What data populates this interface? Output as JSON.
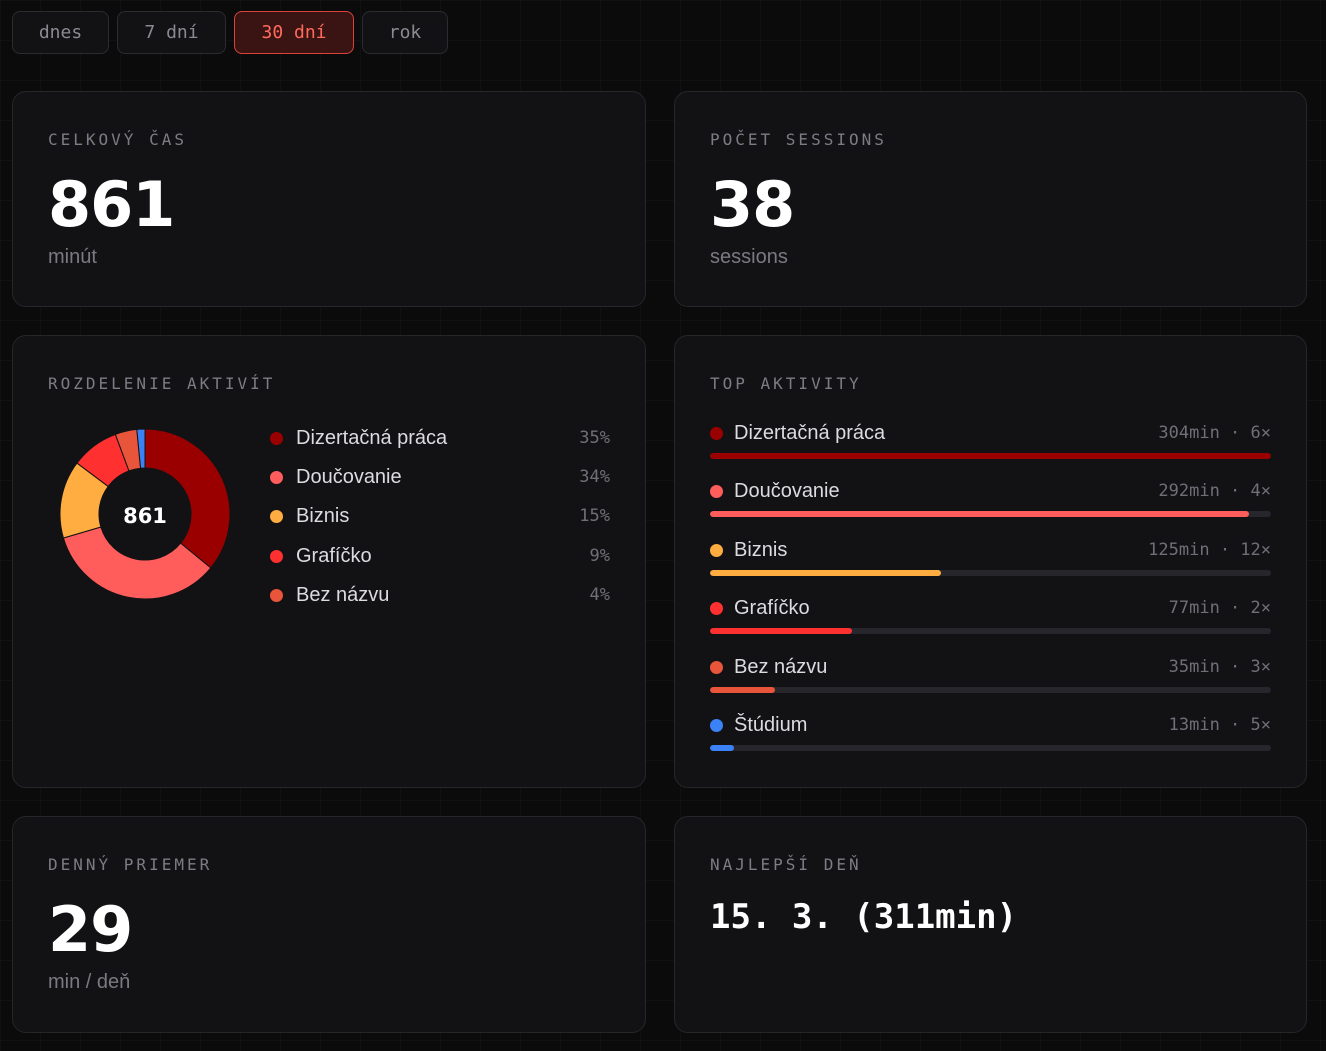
{
  "tabs": [
    {
      "label": "dnes",
      "active": false
    },
    {
      "label": "7 dní",
      "active": false
    },
    {
      "label": "30 dní",
      "active": true
    },
    {
      "label": "rok",
      "active": false
    }
  ],
  "total_time": {
    "label": "CELKOVÝ ČAS",
    "value": "861",
    "unit": "minút"
  },
  "sessions": {
    "label": "POČET SESSIONS",
    "value": "38",
    "unit": "sessions"
  },
  "breakdown": {
    "label": "ROZDELENIE AKTIVÍT",
    "center_label": "861",
    "items": [
      {
        "name": "Dizertačná práca",
        "pct": "35%",
        "color": "#9b0000"
      },
      {
        "name": "Doučovanie",
        "pct": "34%",
        "color": "#ff5c5c"
      },
      {
        "name": "Biznis",
        "pct": "15%",
        "color": "#ffac40"
      },
      {
        "name": "Grafíčko",
        "pct": "9%",
        "color": "#ff3030"
      },
      {
        "name": "Bez názvu",
        "pct": "4%",
        "color": "#e9553a"
      }
    ]
  },
  "chart_data": {
    "type": "pie",
    "categories": [
      "Dizertačná práca",
      "Doučovanie",
      "Biznis",
      "Grafíčko",
      "Bez názvu",
      "Štúdium"
    ],
    "values": [
      304,
      292,
      125,
      77,
      35,
      13
    ],
    "colors": [
      "#9b0000",
      "#ff5c5c",
      "#ffac40",
      "#ff3030",
      "#e9553a",
      "#3b82f6"
    ]
  },
  "top": {
    "label": "TOP AKTIVITY",
    "max_minutes": 304,
    "items": [
      {
        "name": "Dizertačná práca",
        "minutes": 304,
        "meta": "304min · 6×",
        "color": "#9b0000"
      },
      {
        "name": "Doučovanie",
        "minutes": 292,
        "meta": "292min · 4×",
        "color": "#ff5c5c"
      },
      {
        "name": "Biznis",
        "minutes": 125,
        "meta": "125min · 12×",
        "color": "#ffac40"
      },
      {
        "name": "Grafíčko",
        "minutes": 77,
        "meta": "77min · 2×",
        "color": "#ff3030"
      },
      {
        "name": "Bez názvu",
        "minutes": 35,
        "meta": "35min · 3×",
        "color": "#e9553a"
      },
      {
        "name": "Štúdium",
        "minutes": 13,
        "meta": "13min · 5×",
        "color": "#3b82f6"
      }
    ]
  },
  "daily_avg": {
    "label": "DENNÝ PRIEMER",
    "value": "29",
    "unit": "min / deň"
  },
  "best_day": {
    "label": "NAJLEPŠÍ DEŇ",
    "value": "15. 3. (311min)"
  }
}
